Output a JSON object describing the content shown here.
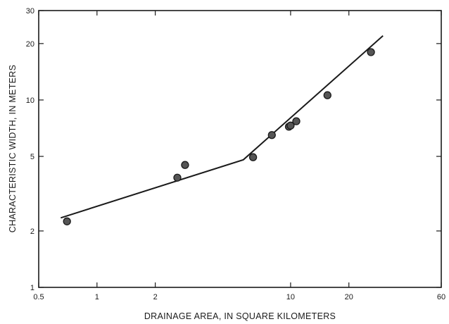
{
  "chart_data": {
    "type": "scatter",
    "title": "",
    "xlabel": "DRAINAGE AREA, IN SQUARE KILOMETERS",
    "ylabel": "CHARACTERISTIC WIDTH, IN METERS",
    "x_scale": "log",
    "y_scale": "log",
    "xlim": [
      0.5,
      60
    ],
    "ylim": [
      1,
      30
    ],
    "x_ticks": [
      0.5,
      1,
      2,
      10,
      20,
      60
    ],
    "x_tick_labels": [
      "0.5",
      "1",
      "2",
      "10",
      "20",
      "60"
    ],
    "y_ticks": [
      1,
      2,
      5,
      10,
      20,
      30
    ],
    "y_tick_labels": [
      "1",
      "2",
      "5",
      "10",
      "20",
      "30"
    ],
    "grid": false,
    "legend": "none",
    "points": [
      {
        "x": 0.7,
        "y": 2.25
      },
      {
        "x": 2.6,
        "y": 3.85
      },
      {
        "x": 2.85,
        "y": 4.5
      },
      {
        "x": 6.4,
        "y": 4.95
      },
      {
        "x": 8.0,
        "y": 6.5
      },
      {
        "x": 9.8,
        "y": 7.2
      },
      {
        "x": 10.0,
        "y": 7.3
      },
      {
        "x": 10.7,
        "y": 7.7
      },
      {
        "x": 15.5,
        "y": 10.6
      },
      {
        "x": 26.0,
        "y": 18.0
      }
    ],
    "fit_line": [
      {
        "x": 0.65,
        "y": 2.35
      },
      {
        "x": 5.7,
        "y": 4.8
      },
      {
        "x": 30.0,
        "y": 22.0
      }
    ],
    "colors": {
      "ink": "#1a1a1a",
      "marker_fill": "#555555",
      "background": "#ffffff"
    }
  }
}
